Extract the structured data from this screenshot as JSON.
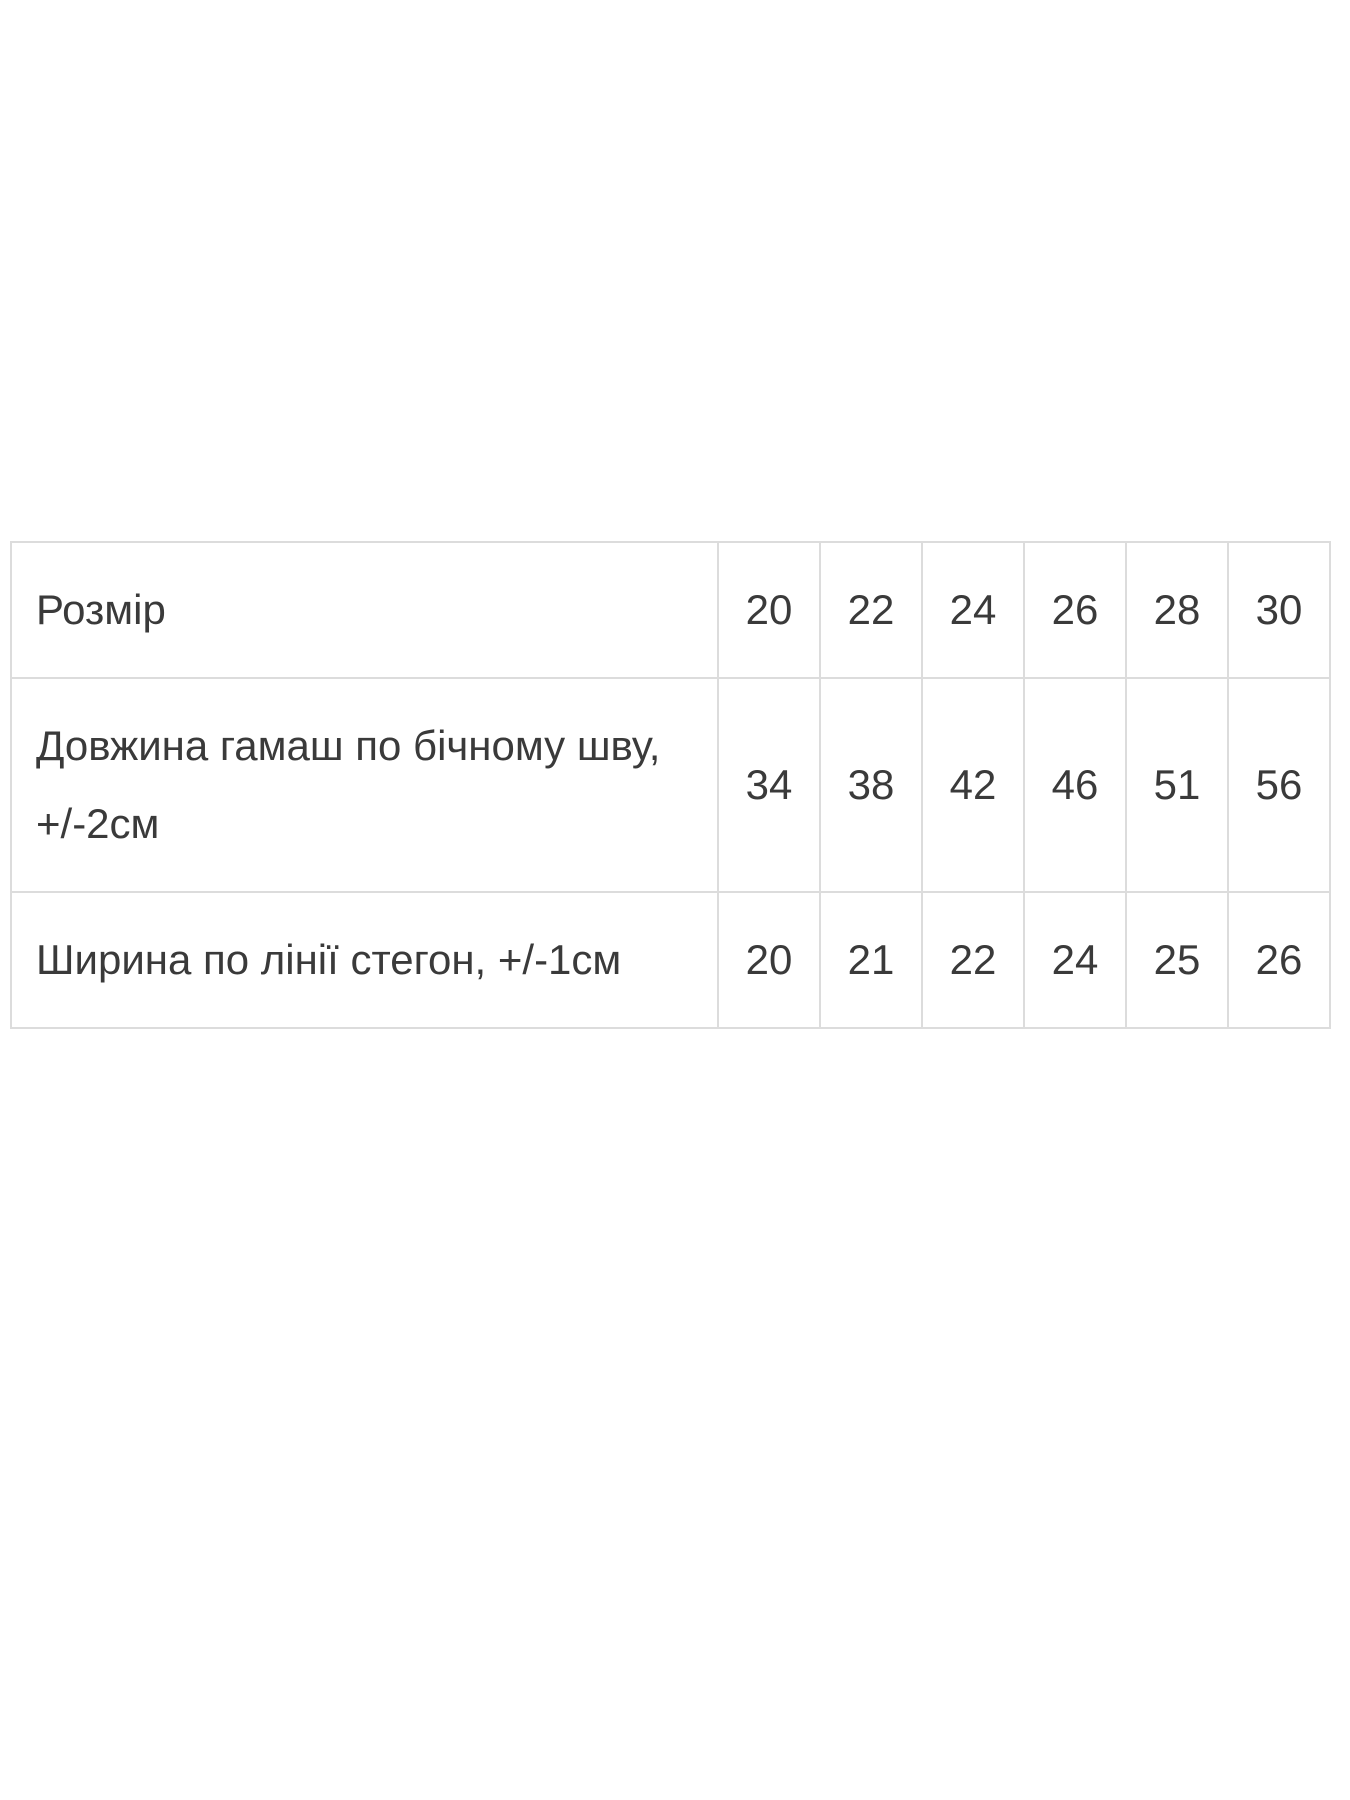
{
  "page": {
    "background": "#ffffff"
  },
  "size_table": {
    "colors": {
      "border": "#dcdcdc",
      "text": "#3a3a3a",
      "background": "#ffffff"
    },
    "rows": [
      {
        "label": "Розмір",
        "values": [
          "20",
          "22",
          "24",
          "26",
          "28",
          "30"
        ]
      },
      {
        "label": "Довжина гамаш по бічному шву, +/-2см",
        "values": [
          "34",
          "38",
          "42",
          "46",
          "51",
          "56"
        ]
      },
      {
        "label": "Ширина по лінії стегон, +/-1см",
        "values": [
          "20",
          "21",
          "22",
          "24",
          "25",
          "26"
        ]
      }
    ]
  }
}
